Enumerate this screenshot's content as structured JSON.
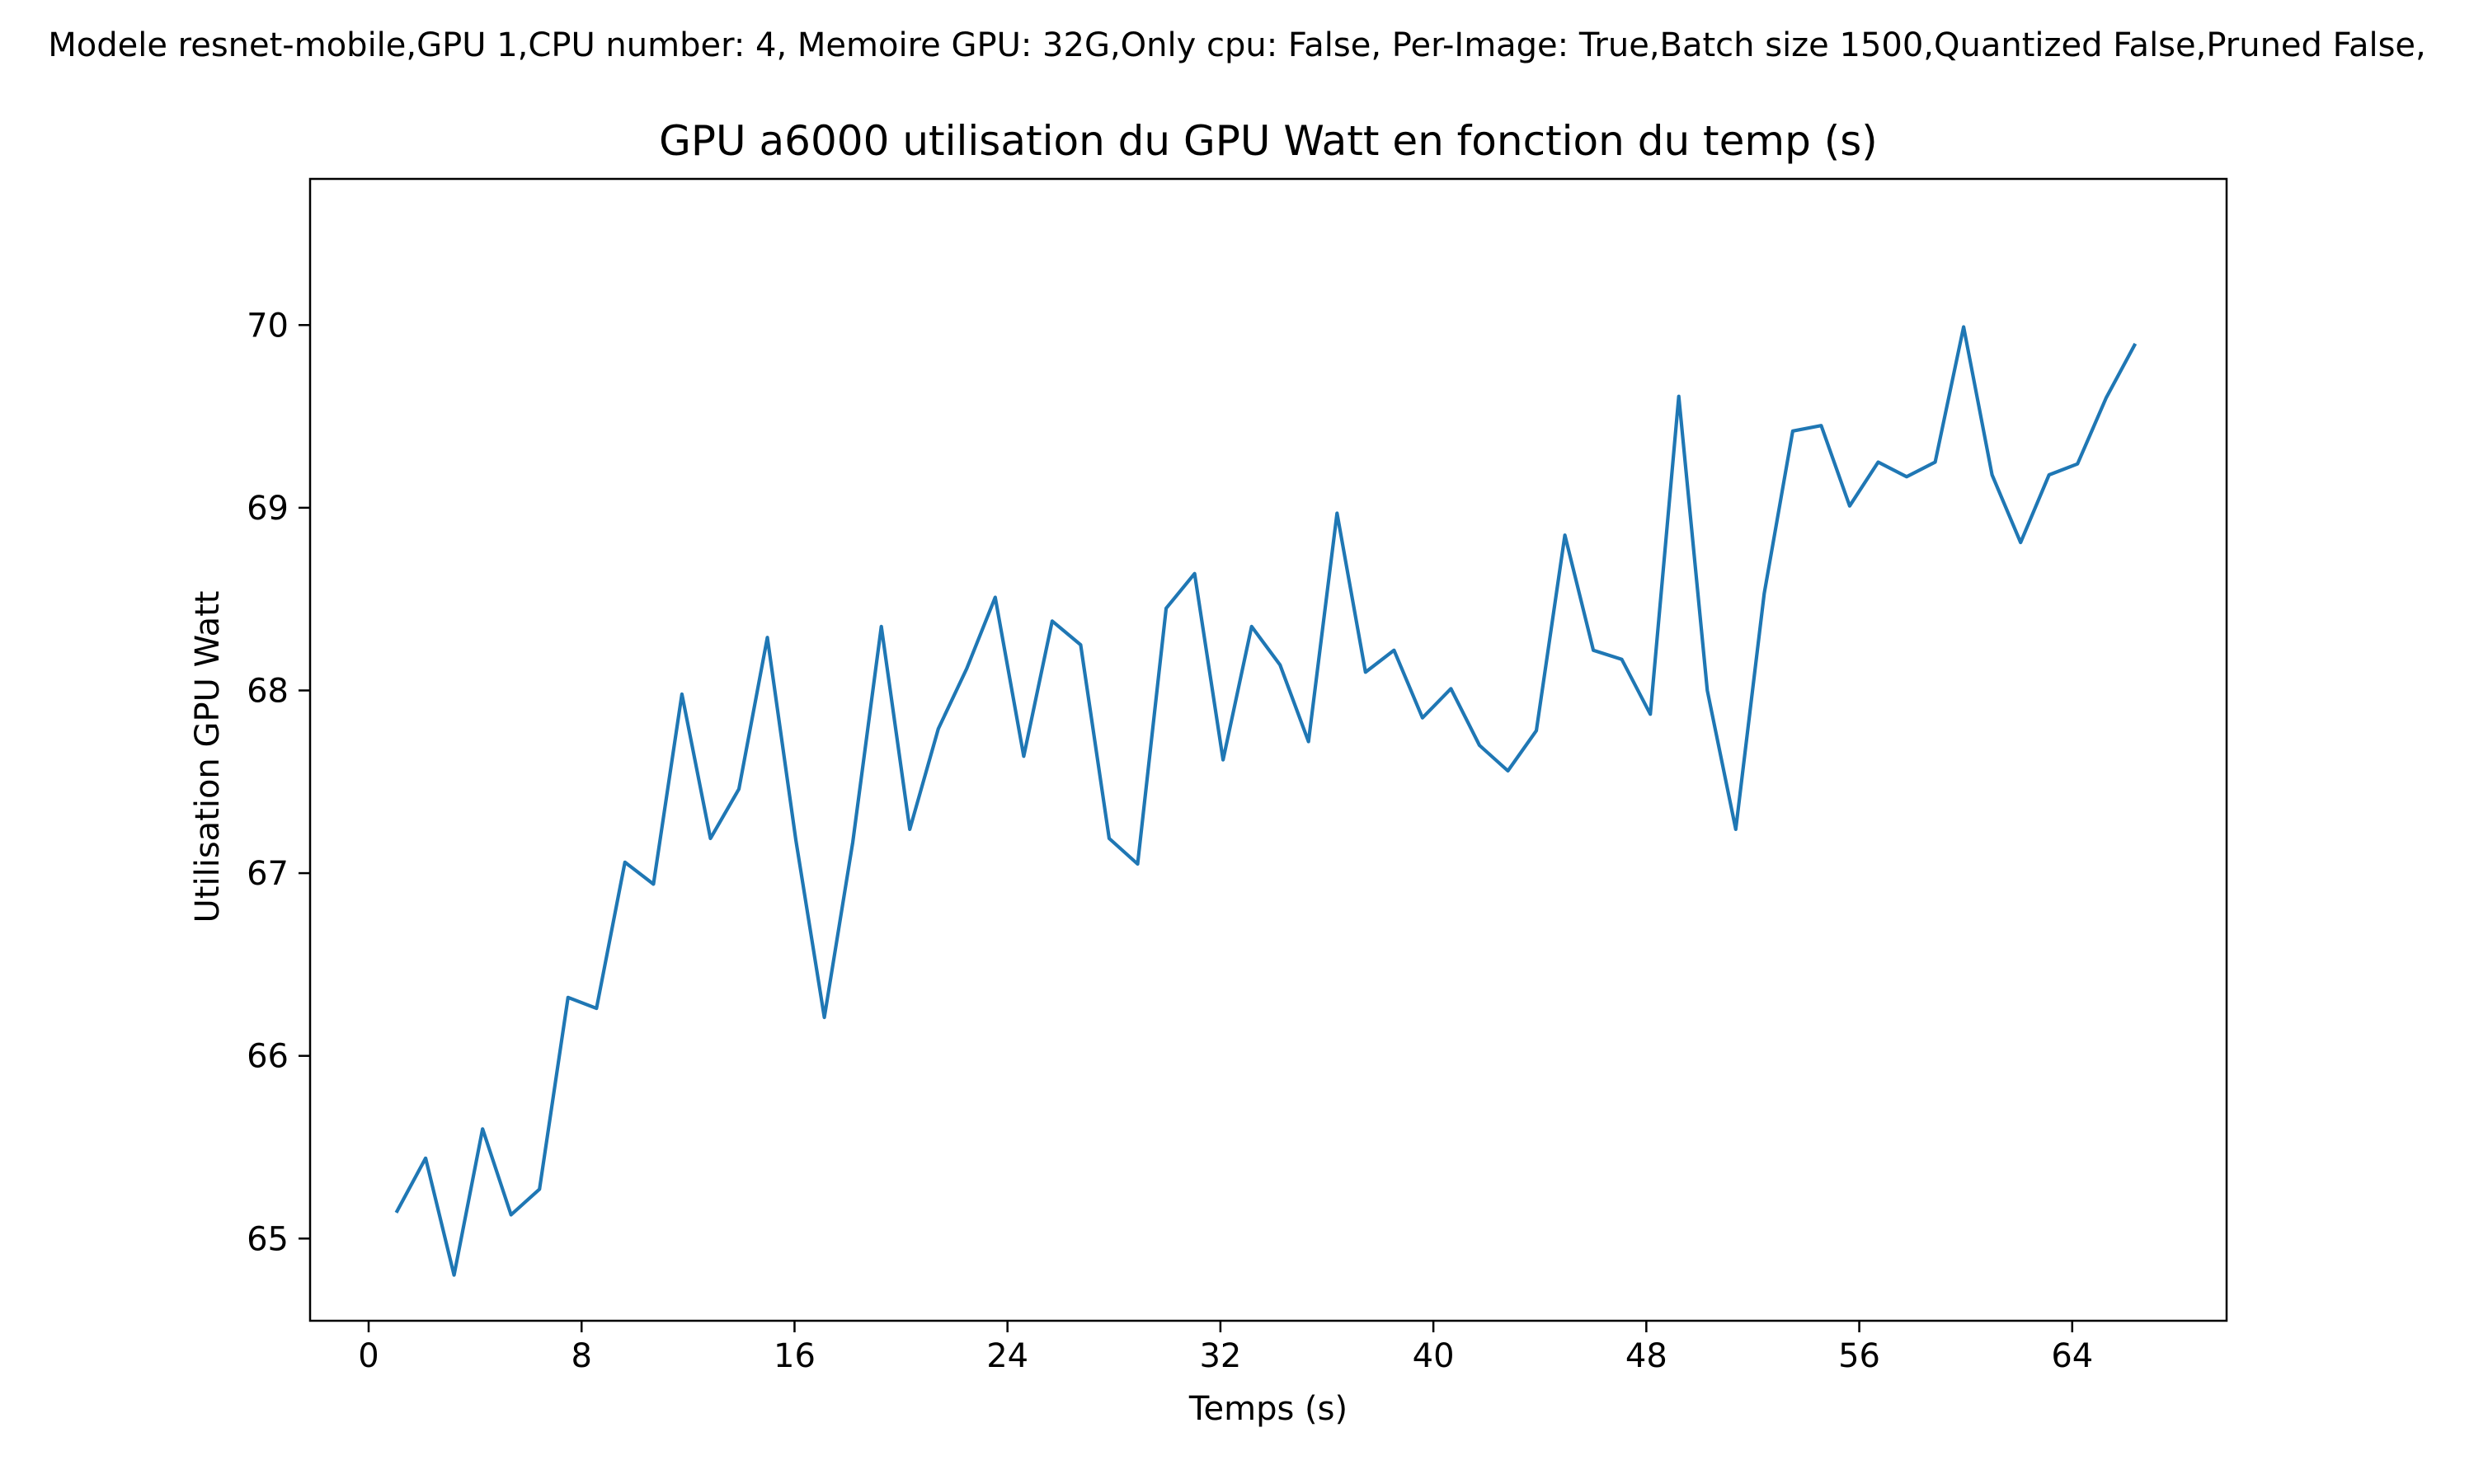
{
  "chart_data": {
    "type": "line",
    "suptitle": "Modele resnet-mobile,GPU 1,CPU number: 4, Memoire GPU: 32G,Only cpu: False, Per-Image: True,Batch size 1500,Quantized False,Pruned False,",
    "title": "GPU a6000 utilisation du GPU Watt en fonction du temp (s)",
    "xlabel": "Temps (s)",
    "ylabel": "Utilisation GPU Watt",
    "xlim": [
      -2.2,
      69.8
    ],
    "ylim": [
      64.55,
      70.8
    ],
    "xticks": [
      0,
      8,
      16,
      24,
      32,
      40,
      48,
      56,
      64
    ],
    "yticks": [
      65,
      66,
      67,
      68,
      69,
      70
    ],
    "grid": false,
    "line_color": "#1f77b4",
    "series": [
      {
        "x": [
          1.07,
          2.14,
          3.21,
          4.28,
          5.35,
          6.42,
          7.49,
          8.56,
          9.63,
          10.7,
          11.77,
          12.84,
          13.91,
          14.98,
          16.05,
          17.12,
          18.19,
          19.26,
          20.33,
          21.4,
          22.47,
          23.54,
          24.61,
          25.68,
          26.75,
          27.82,
          28.89,
          29.96,
          31.03,
          32.1,
          33.17,
          34.24,
          35.31,
          36.38,
          37.45,
          38.52,
          39.59,
          40.66,
          41.73,
          42.8,
          43.87,
          44.94,
          46.01,
          47.08,
          48.15,
          49.22,
          50.29,
          51.36,
          52.43,
          53.5,
          54.57,
          55.64,
          56.71,
          57.78,
          58.85,
          59.92,
          60.99,
          62.06,
          63.13,
          64.2,
          65.27,
          66.34
        ],
        "values": [
          65.15,
          65.44,
          64.8,
          65.6,
          65.13,
          65.27,
          66.32,
          66.26,
          67.06,
          66.94,
          67.98,
          67.19,
          67.46,
          68.29,
          67.18,
          66.21,
          67.17,
          68.35,
          67.24,
          67.79,
          68.12,
          68.51,
          67.64,
          68.38,
          68.25,
          67.19,
          67.05,
          68.45,
          68.64,
          67.62,
          68.35,
          68.14,
          67.72,
          68.97,
          68.1,
          68.22,
          67.85,
          68.01,
          67.7,
          67.56,
          67.78,
          68.85,
          68.22,
          68.17,
          67.87,
          69.61,
          68.0,
          67.24,
          68.53,
          69.42,
          69.45,
          69.01,
          69.25,
          69.17,
          69.25,
          69.99,
          69.18,
          68.81,
          69.18,
          69.24,
          69.6,
          69.89
        ]
      }
    ]
  }
}
